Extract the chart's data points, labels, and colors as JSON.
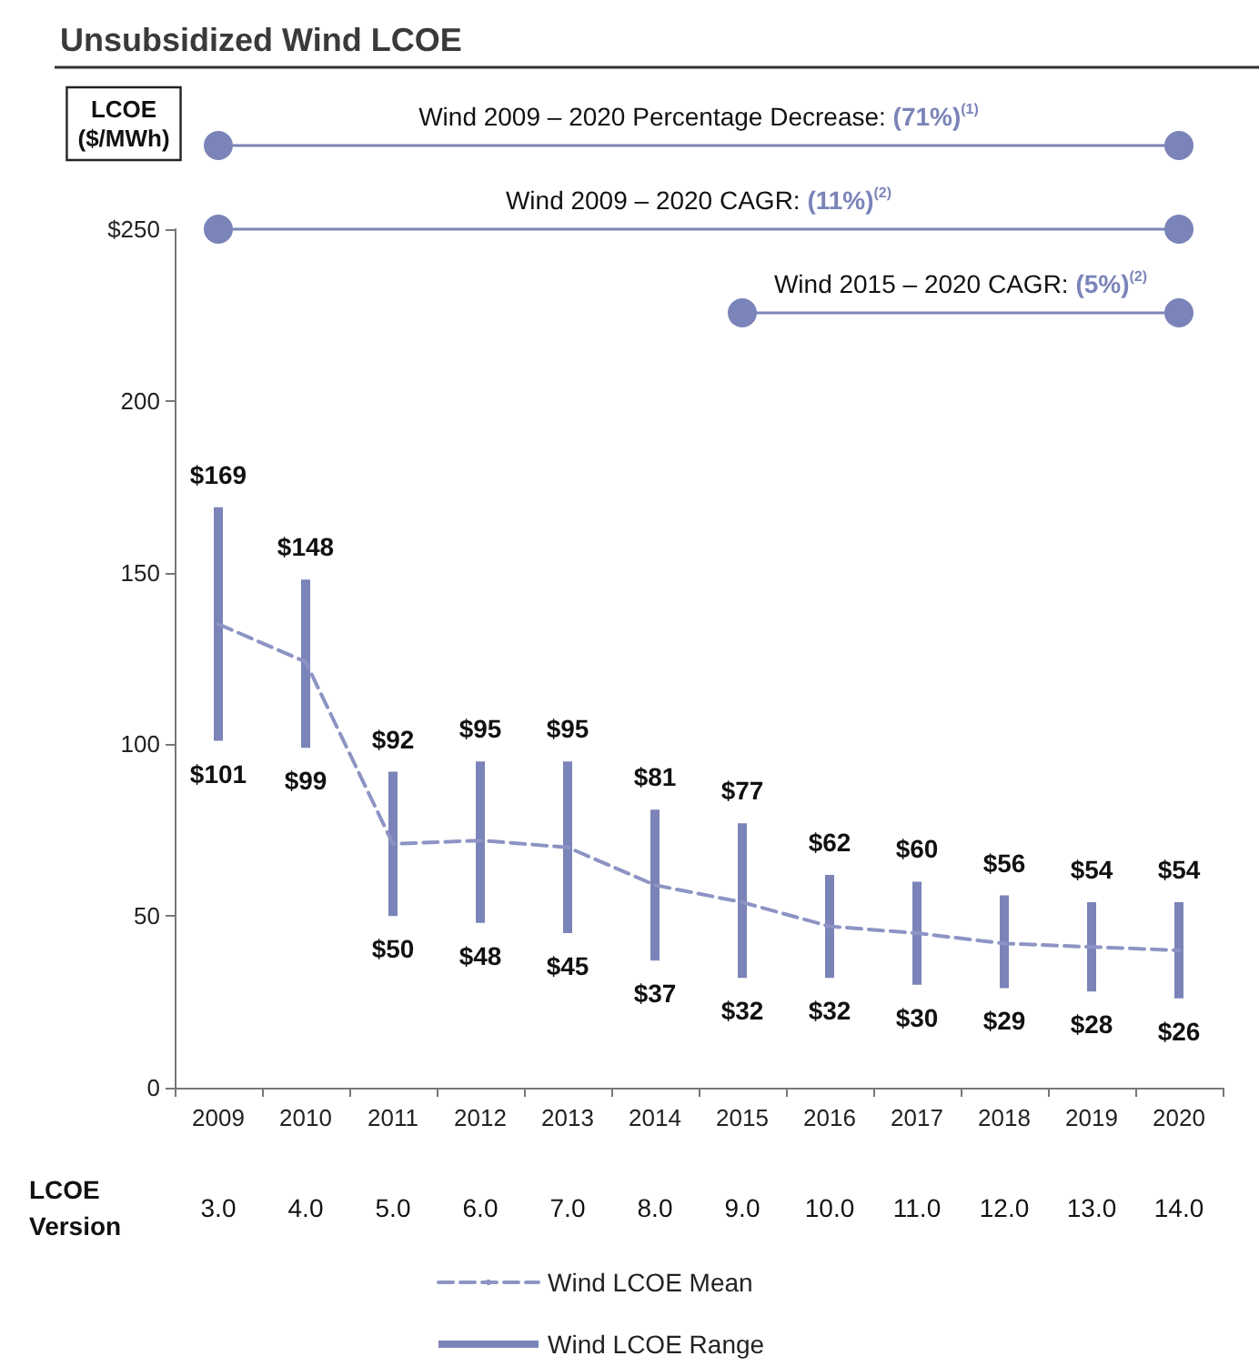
{
  "chart_data": {
    "type": "bar",
    "title": "Unsubsidized Wind LCOE",
    "ylabel": "LCOE ($/MWh)",
    "categories": [
      "2009",
      "2010",
      "2011",
      "2012",
      "2013",
      "2014",
      "2015",
      "2016",
      "2017",
      "2018",
      "2019",
      "2020"
    ],
    "series": [
      {
        "name": "Wind LCOE Mean",
        "type": "line",
        "line_style": "dashed",
        "color": "#8d94c4",
        "values": [
          135,
          124,
          71,
          72,
          70,
          59,
          54,
          47,
          45,
          42,
          41,
          40
        ]
      },
      {
        "name": "Wind LCOE Range",
        "color": "#7b84b8",
        "base": [
          101,
          99,
          50,
          48,
          45,
          37,
          32,
          32,
          30,
          29,
          28,
          26
        ],
        "values": [
          68,
          49,
          42,
          47,
          50,
          44,
          45,
          30,
          30,
          27,
          26,
          28
        ]
      }
    ],
    "ylim": [
      0,
      250
    ],
    "yticks": [
      0,
      50,
      100,
      150,
      200,
      {
        "value": 250,
        "label": "$250"
      }
    ],
    "grid": false,
    "legend": "bottom",
    "marker": "none",
    "annotations": [
      "Wind 2009 – 2020 Percentage Decrease: (71%)$^{(1)}$",
      "Wind 2009 – 2020 CAGR: (11%)$^{(2)}$",
      "Wind 2015 – 2020 CAGR: (5%)$^{(2)}$",
      {
        "text": "$169",
        "x": "2009",
        "y": 169
      },
      {
        "text": "$101",
        "x": "2009",
        "y": 101
      },
      {
        "text": "$148",
        "x": "2010",
        "y": 148
      },
      {
        "text": "$99",
        "x": "2010",
        "y": 99
      },
      {
        "text": "$92",
        "x": "2011",
        "y": 92
      },
      {
        "text": "$50",
        "x": "2011",
        "y": 50
      },
      {
        "text": "$95",
        "x": "2012",
        "y": 95
      },
      {
        "text": "$48",
        "x": "2012",
        "y": 48
      },
      {
        "text": "$95",
        "x": "2013",
        "y": 95
      },
      {
        "text": "$45",
        "x": "2013",
        "y": 45
      },
      {
        "text": "$81",
        "x": "2014",
        "y": 81
      },
      {
        "text": "$37",
        "x": "2014",
        "y": 37
      },
      {
        "text": "$77",
        "x": "2015",
        "y": 77
      },
      {
        "text": "$32",
        "x": "2015",
        "y": 32
      },
      {
        "text": "$62",
        "x": "2016",
        "y": 62
      },
      {
        "text": "$32",
        "x": "2016",
        "y": 32
      },
      {
        "text": "$60",
        "x": "2017",
        "y": 60
      },
      {
        "text": "$30",
        "x": "2017",
        "y": 30
      },
      {
        "text": "$56",
        "x": "2018",
        "y": 56
      },
      {
        "text": "$29",
        "x": "2018",
        "y": 29
      },
      {
        "text": "$54",
        "x": "2019",
        "y": 54
      },
      {
        "text": "$28",
        "x": "2019",
        "y": 28
      },
      {
        "text": "$54",
        "x": "2020",
        "y": 54
      },
      {
        "text": "$26",
        "x": "2020",
        "y": 26
      },
      "LCOE\nVersion",
      "3.0",
      "4.0",
      "5.0",
      "6.0",
      "7.0",
      "8.0",
      "9.0",
      "10.0",
      "11.0",
      "12.0",
      "13.0",
      "14.0"
    ]
  }
}
